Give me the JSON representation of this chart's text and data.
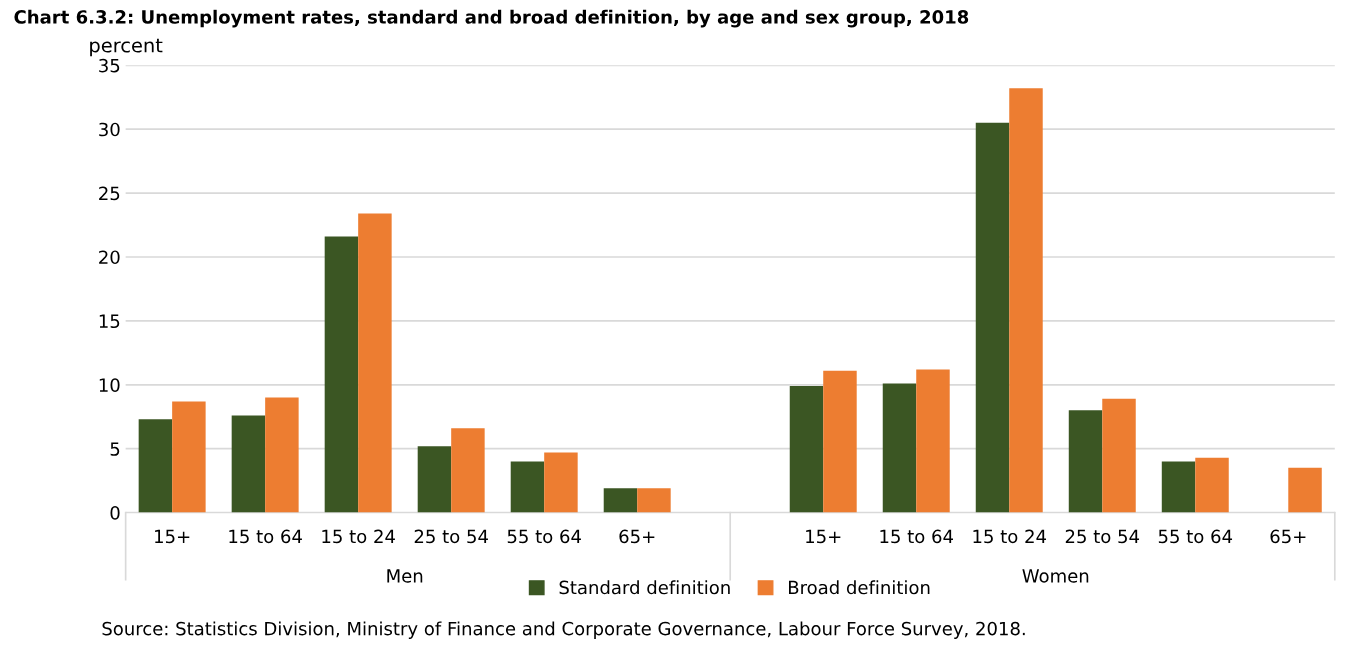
{
  "chart_data": {
    "type": "bar",
    "title": "Chart 6.3.2: Unemployment rates, standard and broad definition, by age and sex group, 2018",
    "ylabel": "percent",
    "categories": [
      "15+",
      "15 to 64",
      "15 to 24",
      "25 to 54",
      "55 to 64",
      "65+",
      null,
      "15+",
      "15 to 64",
      "15 to 24",
      "25 to 54",
      "55 to 64",
      "65+"
    ],
    "series": [
      {
        "name": "Standard definition",
        "color": "#3b5623",
        "values": [
          7.3,
          7.6,
          21.6,
          5.2,
          4.0,
          1.9,
          null,
          9.9,
          10.1,
          30.5,
          8.0,
          4.0,
          null
        ]
      },
      {
        "name": "Broad definition",
        "color": "#ed7d31",
        "values": [
          8.7,
          9.0,
          23.4,
          6.6,
          4.7,
          1.9,
          null,
          11.1,
          11.2,
          33.2,
          8.9,
          4.3,
          3.5
        ]
      }
    ],
    "ylim": [
      0,
      35
    ],
    "yticks": [
      0,
      5,
      10,
      15,
      20,
      25,
      30,
      35
    ],
    "grid": "y",
    "legend": "bottom",
    "annotations": [
      "Men",
      "Women",
      "Source: Statistics Division, Ministry of Finance and Corporate Governance, Labour Force Survey, 2018."
    ]
  }
}
